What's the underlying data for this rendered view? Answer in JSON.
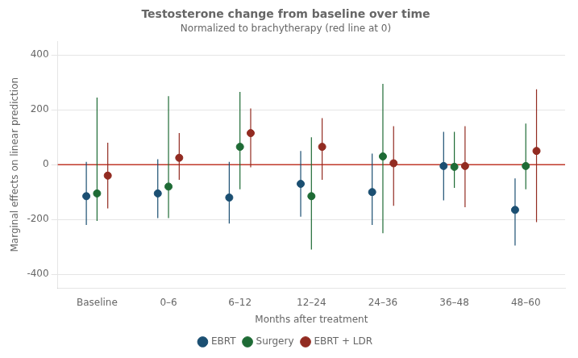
{
  "chart_data": {
    "type": "scatter",
    "title": "Testosterone change from baseline over time",
    "subtitle": "Normalized to brachytherapy (red line at 0)",
    "x_label": "Months after treatment",
    "y_label": "Marginal effects on linear prediction",
    "categories": [
      "Baseline",
      "0–6",
      "6–12",
      "12–24",
      "24–36",
      "36–48",
      "48–60"
    ],
    "ylim": [
      -450,
      450
    ],
    "yticks": [
      -400,
      -200,
      0,
      200,
      400
    ],
    "grid": true,
    "legend": "bottom",
    "marker": "circle",
    "reference_line": {
      "value": 0,
      "color": "#c0392b"
    },
    "series": [
      {
        "name": "EBRT",
        "color": "#1b4f72",
        "values": [
          -115,
          -105,
          -120,
          -70,
          -100,
          -5,
          -165
        ],
        "ci_lo": [
          -220,
          -195,
          -215,
          -190,
          -220,
          -130,
          -295
        ],
        "ci_hi": [
          10,
          20,
          10,
          50,
          40,
          120,
          -50
        ]
      },
      {
        "name": "Surgery",
        "color": "#1e6b35",
        "values": [
          -105,
          -80,
          65,
          -115,
          30,
          -8,
          -5
        ],
        "ci_lo": [
          -205,
          -195,
          -90,
          -310,
          -250,
          -85,
          -90
        ],
        "ci_hi": [
          245,
          250,
          265,
          100,
          295,
          120,
          150
        ]
      },
      {
        "name": "EBRT + LDR",
        "color": "#922b21",
        "values": [
          -40,
          25,
          115,
          65,
          5,
          -5,
          50
        ],
        "ci_lo": [
          -160,
          -55,
          -10,
          -55,
          -150,
          -155,
          -210
        ],
        "ci_hi": [
          80,
          115,
          205,
          170,
          140,
          140,
          275
        ]
      }
    ]
  }
}
